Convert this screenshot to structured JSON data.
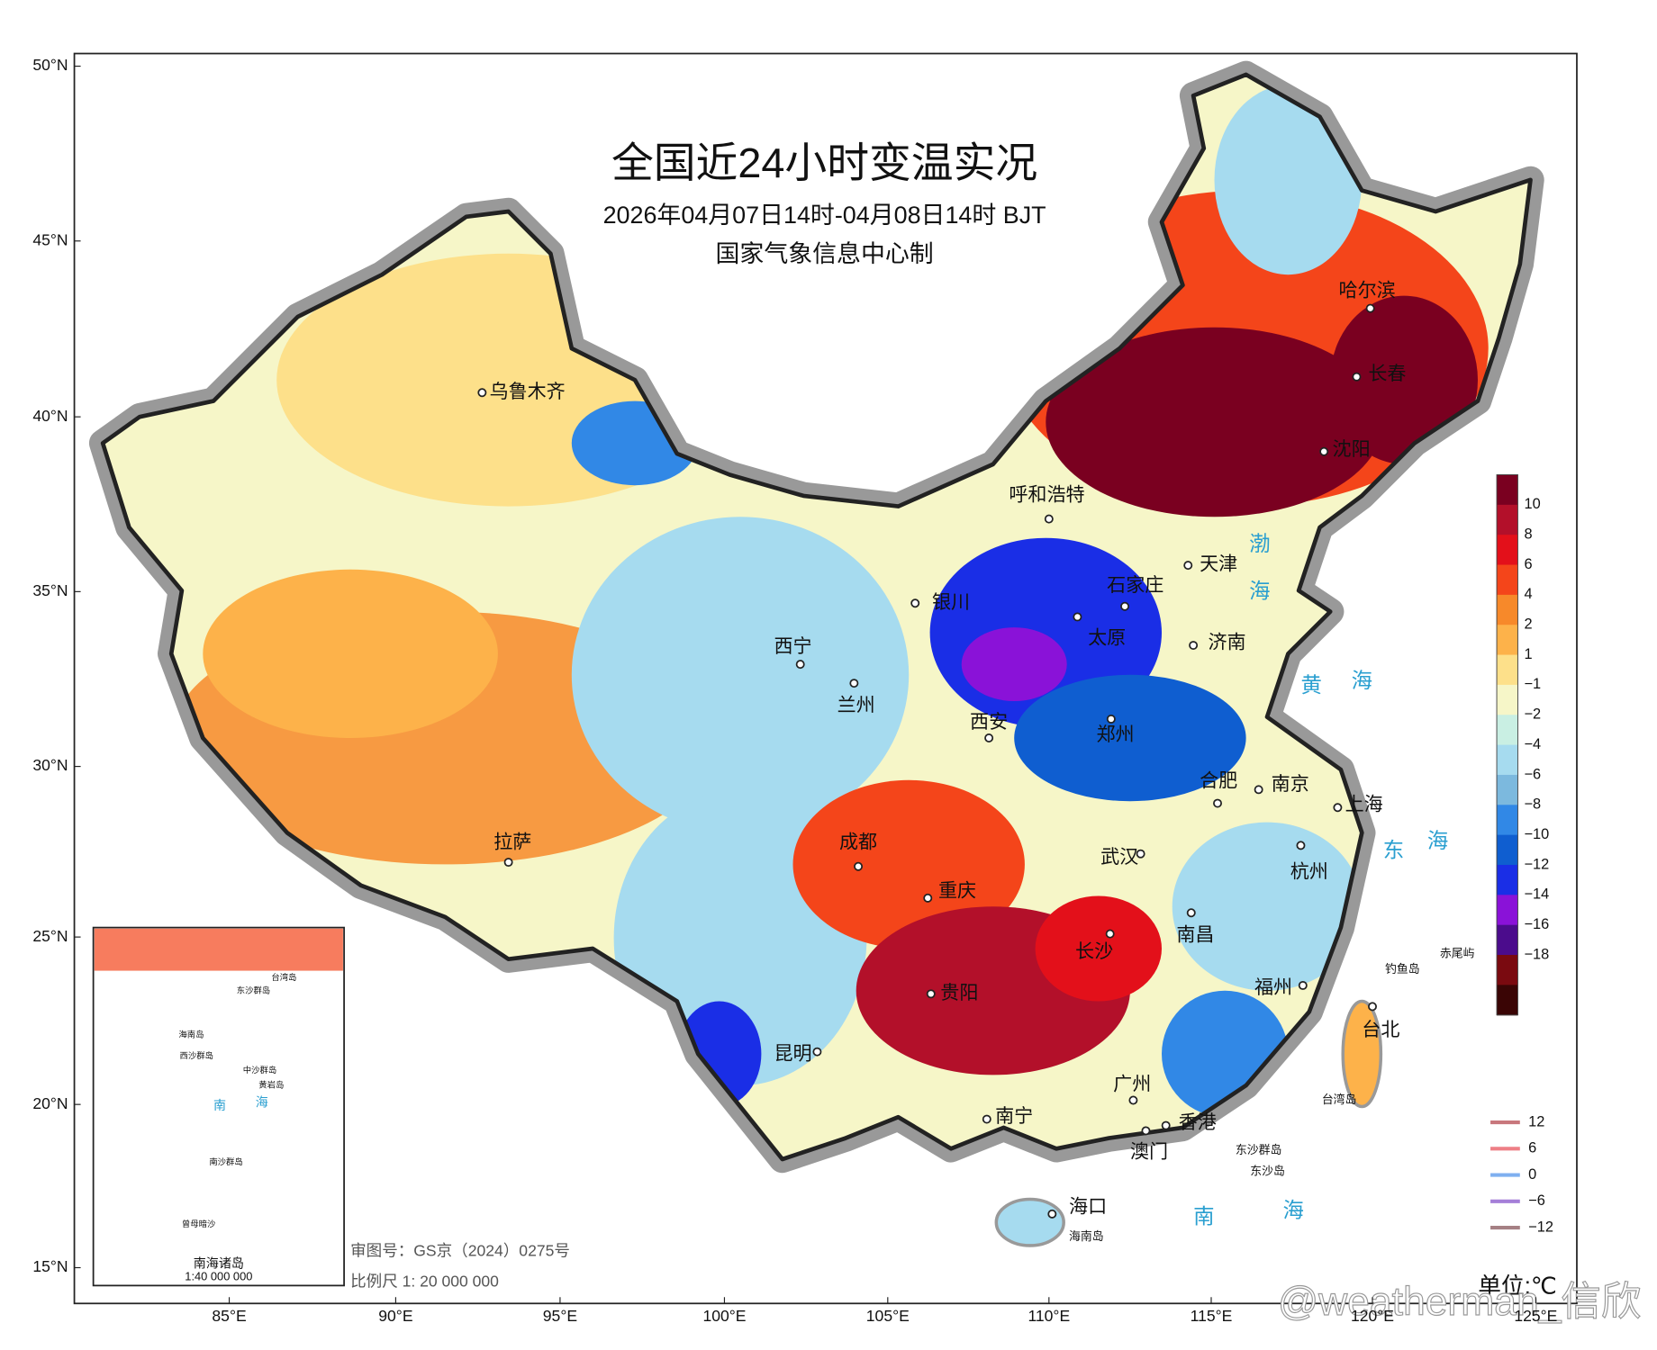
{
  "title": "全国近24小时变温实况",
  "subtitle": "2026年04月07日14时-04月08日14时 BJT",
  "producer": "国家气象信息中心制",
  "axes": {
    "lat_labels": [
      "50°N",
      "45°N",
      "40°N",
      "35°N",
      "30°N",
      "25°N",
      "20°N",
      "15°N"
    ],
    "lon_labels": [
      "85°E",
      "90°E",
      "95°E",
      "100°E",
      "105°E",
      "110°E",
      "115°E",
      "120°E",
      "125°E"
    ]
  },
  "cities": [
    "乌鲁木齐",
    "呼和浩特",
    "哈尔滨",
    "长春",
    "沈阳",
    "天津",
    "石家庄",
    "银川",
    "太原",
    "济南",
    "西宁",
    "兰州",
    "西安",
    "郑州",
    "合肥",
    "南京",
    "上海",
    "拉萨",
    "成都",
    "重庆",
    "武汉",
    "杭州",
    "南昌",
    "长沙",
    "贵阳",
    "福州",
    "台北",
    "昆明",
    "广州",
    "南宁",
    "香港",
    "澳门",
    "海口"
  ],
  "seas": [
    "渤",
    "海",
    "黄",
    "海",
    "东",
    "海",
    "南",
    "海"
  ],
  "islands": [
    "钓鱼岛",
    "赤尾屿",
    "台湾岛",
    "东沙群岛",
    "东沙岛",
    "海南岛"
  ],
  "colorbar": {
    "labels": [
      "10",
      "8",
      "6",
      "4",
      "2",
      "1",
      "−1",
      "−2",
      "−4",
      "−6",
      "−8",
      "−10",
      "−12",
      "−14",
      "−16",
      "−18"
    ],
    "colors": [
      "#7a0020",
      "#b3102a",
      "#e3101a",
      "#f4451a",
      "#f7892a",
      "#fdb24a",
      "#fde08a",
      "#f6f6c8",
      "#c9efe3",
      "#a6dbef",
      "#7cb9de",
      "#3188e6",
      "#0f5ed0",
      "#1a2ee6",
      "#8a12d8",
      "#4b0c8c",
      "#7a0a10",
      "#3a0505"
    ]
  },
  "contour_legend": {
    "labels": [
      "12",
      "6",
      "0",
      "−6",
      "−12"
    ],
    "colors": [
      "#c8777c",
      "#ee7f86",
      "#7fb0f0",
      "#a57fd8",
      "#a58084"
    ]
  },
  "inset": {
    "labels": [
      "台湾岛",
      "东沙群岛",
      "海南岛",
      "西沙群岛",
      "中沙群岛",
      "黄岩岛",
      "南",
      "海",
      "南沙群岛",
      "曾母暗沙"
    ],
    "title": "南海诸岛",
    "scale": "1:40 000 000"
  },
  "review_number": "审图号：GS京（2024）0275号",
  "scale": "比例尺 1: 20 000 000",
  "unit": "单位:℃",
  "watermark": "@weatherman_信欣"
}
